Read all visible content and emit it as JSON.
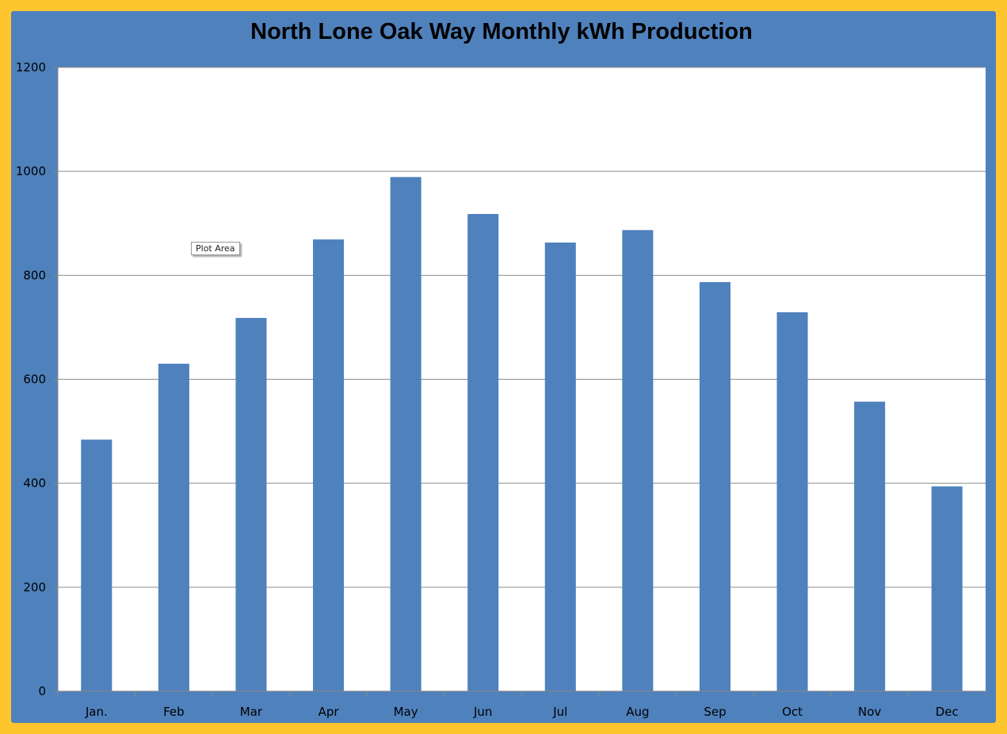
{
  "chart_data": {
    "type": "bar",
    "title": "North Lone Oak Way Monthly kWh Production",
    "categories": [
      "Jan.",
      "Feb",
      "Mar",
      "Apr",
      "May",
      "Jun",
      "Jul",
      "Aug",
      "Sep",
      "Oct",
      "Nov",
      "Dec"
    ],
    "values": [
      484,
      630,
      718,
      869,
      989,
      918,
      863,
      887,
      787,
      729,
      557,
      394
    ],
    "ylim": [
      0,
      1200
    ],
    "yticks": [
      0,
      200,
      400,
      600,
      800,
      1000,
      1200
    ],
    "xlabel": "",
    "ylabel": "",
    "grid": true,
    "legend": "none"
  },
  "tooltip": {
    "label": "Plot Area"
  },
  "colors": {
    "outer_border": "#FFC52E",
    "chart_background": "#4F81BD",
    "plot_background": "#FFFFFF",
    "bar": "#4F81BD",
    "gridline": "#8C8C8C"
  }
}
